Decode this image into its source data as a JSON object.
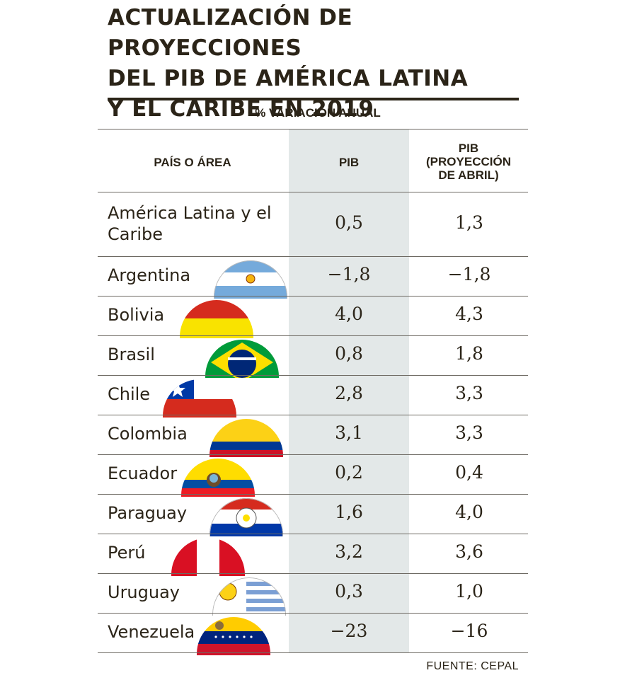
{
  "header": {
    "title_lines": [
      "ACTUALIZACIÓN DE PROYECCIONES",
      "DEL PIB DE AMÉRICA LATINA",
      "Y EL CARIBE EN 2019"
    ],
    "subtitle": "% VARIACIÓN ANUAL"
  },
  "columns": {
    "country": "PAÍS O ÁREA",
    "pib": "PIB",
    "april_lines": [
      "PIB",
      "(PROYECCIÓN",
      "DE ABRIL)"
    ]
  },
  "source": "FUENTE: CEPAL",
  "colors": {
    "text": "#2b2418",
    "pib_band": "#e3e8e8",
    "rule": "#6e6a63"
  },
  "chart_data": {
    "type": "table",
    "title": "ACTUALIZACIÓN DE PROYECCIONES DEL PIB DE AMÉRICA LATINA Y EL CARIBE EN 2019",
    "subtitle": "% VARIACIÓN ANUAL",
    "columns": [
      "PAÍS O ÁREA",
      "PIB",
      "PIB (PROYECCIÓN DE ABRIL)"
    ],
    "rows": [
      {
        "country_lines": [
          "América Latina y el",
          "Caribe"
        ],
        "pib": "0,5",
        "april": "1,3",
        "flag": ""
      },
      {
        "country_lines": [
          "Argentina"
        ],
        "pib": "−1,8",
        "april": "−1,8",
        "flag": "argentina-flag-icon"
      },
      {
        "country_lines": [
          "Bolivia"
        ],
        "pib": "4,0",
        "april": "4,3",
        "flag": "bolivia-flag-icon"
      },
      {
        "country_lines": [
          "Brasil"
        ],
        "pib": "0,8",
        "april": "1,8",
        "flag": "brazil-flag-icon"
      },
      {
        "country_lines": [
          "Chile"
        ],
        "pib": "2,8",
        "april": "3,3",
        "flag": "chile-flag-icon"
      },
      {
        "country_lines": [
          "Colombia"
        ],
        "pib": "3,1",
        "april": "3,3",
        "flag": "colombia-flag-icon"
      },
      {
        "country_lines": [
          "Ecuador"
        ],
        "pib": "0,2",
        "april": "0,4",
        "flag": "ecuador-flag-icon"
      },
      {
        "country_lines": [
          "Paraguay"
        ],
        "pib": "1,6",
        "april": "4,0",
        "flag": "paraguay-flag-icon"
      },
      {
        "country_lines": [
          "Perú"
        ],
        "pib": "3,2",
        "april": "3,6",
        "flag": "peru-flag-icon"
      },
      {
        "country_lines": [
          "Uruguay"
        ],
        "pib": "0,3",
        "april": "1,0",
        "flag": "uruguay-flag-icon"
      },
      {
        "country_lines": [
          "Venezuela"
        ],
        "pib": "−23",
        "april": "−16",
        "flag": "venezuela-flag-icon"
      }
    ]
  }
}
